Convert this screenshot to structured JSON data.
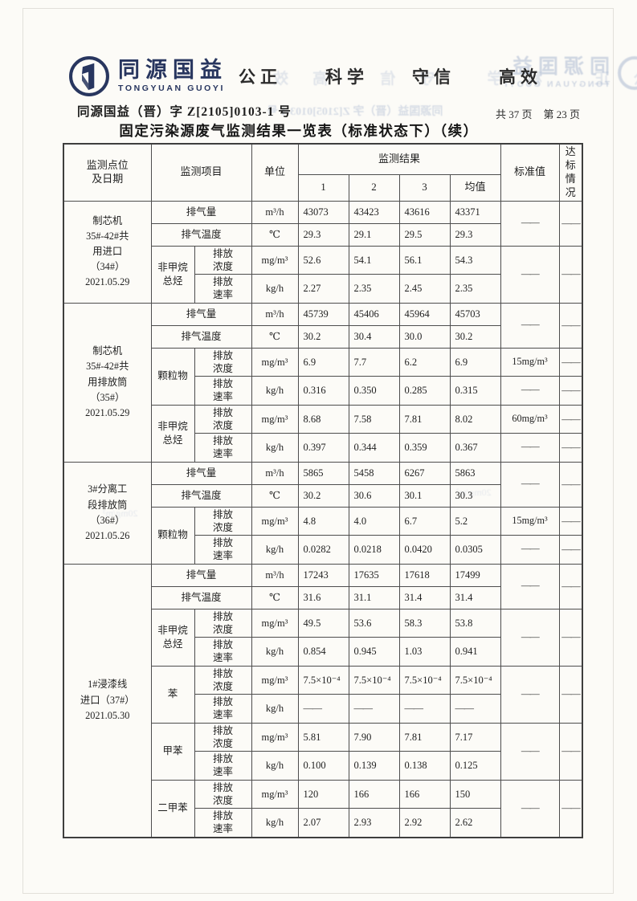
{
  "brand": {
    "logo_text": "同源国益",
    "logo_sub": "TONGYUAN GUOYI",
    "slogans": [
      "公正",
      "科学",
      "守信",
      "高效"
    ]
  },
  "header": {
    "doc_number": "同源国益（晋）字 Z[2105]0103-1 号",
    "page_count": "共 37 页",
    "page_current": "第 23 页",
    "title": "固定污染源废气监测结果一览表（标准状态下）（续）"
  },
  "ghosts": {
    "logo_text": "同源国益",
    "logo_sub": "TONGYUAN GUOYI",
    "doc_number": "同源国益（晋）字 Z[2105]0103-1 号",
    "slogans": "公正 科学 守信 高效",
    "small1": "20mg/m³",
    "small2": "20mg/m³"
  },
  "table": {
    "header_rows": [
      [
        {
          "t": "监测点位\n及日期",
          "rs": 2,
          "k": "h"
        },
        {
          "t": "监测项目",
          "rs": 2,
          "cs": 2,
          "k": "h"
        },
        {
          "t": "单位",
          "rs": 2,
          "k": "h"
        },
        {
          "t": "监测结果",
          "cs": 4,
          "k": "h"
        },
        {
          "t": "标准值",
          "rs": 2,
          "k": "h"
        },
        {
          "t": "达标\n情况",
          "rs": 2,
          "k": "h"
        }
      ],
      [
        {
          "t": "1",
          "k": "h"
        },
        {
          "t": "2",
          "k": "h"
        },
        {
          "t": "3",
          "k": "h"
        },
        {
          "t": "均值",
          "k": "h"
        }
      ]
    ],
    "rows": [
      {
        "h": "s",
        "c": [
          {
            "t": "制芯机\n35#-42#共\n用进口\n（34#）\n2021.05.29",
            "rs": 4,
            "k": "pt"
          },
          {
            "t": "排气量",
            "cs": 2,
            "k": "it"
          },
          {
            "t": "m³/h",
            "k": "un"
          },
          {
            "t": "43073",
            "k": "v"
          },
          {
            "t": "43423",
            "k": "v"
          },
          {
            "t": "43616",
            "k": "v"
          },
          {
            "t": "43371",
            "k": "v"
          },
          {
            "t": "——",
            "rs": 2,
            "k": "std"
          },
          {
            "t": "——",
            "rs": 2,
            "k": "cp"
          }
        ]
      },
      {
        "h": "s",
        "c": [
          {
            "t": "排气温度",
            "cs": 2,
            "k": "it"
          },
          {
            "t": "℃",
            "k": "un"
          },
          {
            "t": "29.3",
            "k": "v"
          },
          {
            "t": "29.1",
            "k": "v"
          },
          {
            "t": "29.5",
            "k": "v"
          },
          {
            "t": "29.3",
            "k": "v"
          }
        ]
      },
      {
        "h": "d",
        "c": [
          {
            "t": "非甲烷\n总烃",
            "rs": 2,
            "k": "it"
          },
          {
            "t": "排放\n浓度",
            "k": "sub"
          },
          {
            "t": "mg/m³",
            "k": "un"
          },
          {
            "t": "52.6",
            "k": "v"
          },
          {
            "t": "54.1",
            "k": "v"
          },
          {
            "t": "56.1",
            "k": "v"
          },
          {
            "t": "54.3",
            "k": "v"
          },
          {
            "t": "——",
            "rs": 2,
            "k": "std"
          },
          {
            "t": "——",
            "rs": 2,
            "k": "cp"
          }
        ]
      },
      {
        "h": "d",
        "c": [
          {
            "t": "排放\n速率",
            "k": "sub"
          },
          {
            "t": "kg/h",
            "k": "un"
          },
          {
            "t": "2.27",
            "k": "v"
          },
          {
            "t": "2.35",
            "k": "v"
          },
          {
            "t": "2.45",
            "k": "v"
          },
          {
            "t": "2.35",
            "k": "v"
          }
        ]
      },
      {
        "h": "s",
        "c": [
          {
            "t": "制芯机\n35#-42#共\n用排放筒\n（35#）\n2021.05.29",
            "rs": 6,
            "k": "pt"
          },
          {
            "t": "排气量",
            "cs": 2,
            "k": "it"
          },
          {
            "t": "m³/h",
            "k": "un"
          },
          {
            "t": "45739",
            "k": "v"
          },
          {
            "t": "45406",
            "k": "v"
          },
          {
            "t": "45964",
            "k": "v"
          },
          {
            "t": "45703",
            "k": "v"
          },
          {
            "t": "——",
            "rs": 2,
            "k": "std"
          },
          {
            "t": "——",
            "rs": 2,
            "k": "cp"
          }
        ]
      },
      {
        "h": "s",
        "c": [
          {
            "t": "排气温度",
            "cs": 2,
            "k": "it"
          },
          {
            "t": "℃",
            "k": "un"
          },
          {
            "t": "30.2",
            "k": "v"
          },
          {
            "t": "30.4",
            "k": "v"
          },
          {
            "t": "30.0",
            "k": "v"
          },
          {
            "t": "30.2",
            "k": "v"
          }
        ]
      },
      {
        "h": "d",
        "c": [
          {
            "t": "颗粒物",
            "rs": 2,
            "k": "it"
          },
          {
            "t": "排放\n浓度",
            "k": "sub"
          },
          {
            "t": "mg/m³",
            "k": "un"
          },
          {
            "t": "6.9",
            "k": "v"
          },
          {
            "t": "7.7",
            "k": "v"
          },
          {
            "t": "6.2",
            "k": "v"
          },
          {
            "t": "6.9",
            "k": "v"
          },
          {
            "t": "15mg/m³",
            "k": "std"
          },
          {
            "t": "——",
            "k": "cp"
          }
        ]
      },
      {
        "h": "d",
        "c": [
          {
            "t": "排放\n速率",
            "k": "sub"
          },
          {
            "t": "kg/h",
            "k": "un"
          },
          {
            "t": "0.316",
            "k": "v"
          },
          {
            "t": "0.350",
            "k": "v"
          },
          {
            "t": "0.285",
            "k": "v"
          },
          {
            "t": "0.315",
            "k": "v"
          },
          {
            "t": "——",
            "k": "std"
          },
          {
            "t": "——",
            "k": "cp"
          }
        ]
      },
      {
        "h": "d",
        "c": [
          {
            "t": "非甲烷\n总烃",
            "rs": 2,
            "k": "it"
          },
          {
            "t": "排放\n浓度",
            "k": "sub"
          },
          {
            "t": "mg/m³",
            "k": "un"
          },
          {
            "t": "8.68",
            "k": "v"
          },
          {
            "t": "7.58",
            "k": "v"
          },
          {
            "t": "7.81",
            "k": "v"
          },
          {
            "t": "8.02",
            "k": "v"
          },
          {
            "t": "60mg/m³",
            "k": "std"
          },
          {
            "t": "——",
            "k": "cp"
          }
        ]
      },
      {
        "h": "d",
        "c": [
          {
            "t": "排放\n速率",
            "k": "sub"
          },
          {
            "t": "kg/h",
            "k": "un"
          },
          {
            "t": "0.397",
            "k": "v"
          },
          {
            "t": "0.344",
            "k": "v"
          },
          {
            "t": "0.359",
            "k": "v"
          },
          {
            "t": "0.367",
            "k": "v"
          },
          {
            "t": "——",
            "k": "std"
          },
          {
            "t": "——",
            "k": "cp"
          }
        ]
      },
      {
        "h": "s",
        "c": [
          {
            "t": "3#分离工\n段排放筒\n（36#）\n2021.05.26",
            "rs": 4,
            "k": "pt"
          },
          {
            "t": "排气量",
            "cs": 2,
            "k": "it"
          },
          {
            "t": "m³/h",
            "k": "un"
          },
          {
            "t": "5865",
            "k": "v"
          },
          {
            "t": "5458",
            "k": "v"
          },
          {
            "t": "6267",
            "k": "v"
          },
          {
            "t": "5863",
            "k": "v"
          },
          {
            "t": "——",
            "rs": 2,
            "k": "std"
          },
          {
            "t": "——",
            "rs": 2,
            "k": "cp"
          }
        ]
      },
      {
        "h": "s",
        "c": [
          {
            "t": "排气温度",
            "cs": 2,
            "k": "it"
          },
          {
            "t": "℃",
            "k": "un"
          },
          {
            "t": "30.2",
            "k": "v"
          },
          {
            "t": "30.6",
            "k": "v"
          },
          {
            "t": "30.1",
            "k": "v"
          },
          {
            "t": "30.3",
            "k": "v"
          }
        ]
      },
      {
        "h": "d",
        "c": [
          {
            "t": "颗粒物",
            "rs": 2,
            "k": "it"
          },
          {
            "t": "排放\n浓度",
            "k": "sub"
          },
          {
            "t": "mg/m³",
            "k": "un"
          },
          {
            "t": "4.8",
            "k": "v"
          },
          {
            "t": "4.0",
            "k": "v"
          },
          {
            "t": "6.7",
            "k": "v"
          },
          {
            "t": "5.2",
            "k": "v"
          },
          {
            "t": "15mg/m³",
            "k": "std"
          },
          {
            "t": "——",
            "k": "cp"
          }
        ]
      },
      {
        "h": "d",
        "c": [
          {
            "t": "排放\n速率",
            "k": "sub"
          },
          {
            "t": "kg/h",
            "k": "un"
          },
          {
            "t": "0.0282",
            "k": "v"
          },
          {
            "t": "0.0218",
            "k": "v"
          },
          {
            "t": "0.0420",
            "k": "v"
          },
          {
            "t": "0.0305",
            "k": "v"
          },
          {
            "t": "——",
            "k": "std"
          },
          {
            "t": "——",
            "k": "cp"
          }
        ]
      },
      {
        "h": "s",
        "c": [
          {
            "t": "1#浸漆线\n进口（37#）\n2021.05.30",
            "rs": 10,
            "k": "pt"
          },
          {
            "t": "排气量",
            "cs": 2,
            "k": "it"
          },
          {
            "t": "m³/h",
            "k": "un"
          },
          {
            "t": "17243",
            "k": "v"
          },
          {
            "t": "17635",
            "k": "v"
          },
          {
            "t": "17618",
            "k": "v"
          },
          {
            "t": "17499",
            "k": "v"
          },
          {
            "t": "——",
            "rs": 2,
            "k": "std"
          },
          {
            "t": "——",
            "rs": 2,
            "k": "cp"
          }
        ]
      },
      {
        "h": "s",
        "c": [
          {
            "t": "排气温度",
            "cs": 2,
            "k": "it"
          },
          {
            "t": "℃",
            "k": "un"
          },
          {
            "t": "31.6",
            "k": "v"
          },
          {
            "t": "31.1",
            "k": "v"
          },
          {
            "t": "31.4",
            "k": "v"
          },
          {
            "t": "31.4",
            "k": "v"
          }
        ]
      },
      {
        "h": "d",
        "c": [
          {
            "t": "非甲烷\n总烃",
            "rs": 2,
            "k": "it"
          },
          {
            "t": "排放\n浓度",
            "k": "sub"
          },
          {
            "t": "mg/m³",
            "k": "un"
          },
          {
            "t": "49.5",
            "k": "v"
          },
          {
            "t": "53.6",
            "k": "v"
          },
          {
            "t": "58.3",
            "k": "v"
          },
          {
            "t": "53.8",
            "k": "v"
          },
          {
            "t": "——",
            "rs": 2,
            "k": "std"
          },
          {
            "t": "——",
            "rs": 2,
            "k": "cp"
          }
        ]
      },
      {
        "h": "d",
        "c": [
          {
            "t": "排放\n速率",
            "k": "sub"
          },
          {
            "t": "kg/h",
            "k": "un"
          },
          {
            "t": "0.854",
            "k": "v"
          },
          {
            "t": "0.945",
            "k": "v"
          },
          {
            "t": "1.03",
            "k": "v"
          },
          {
            "t": "0.941",
            "k": "v"
          }
        ]
      },
      {
        "h": "d",
        "c": [
          {
            "t": "苯",
            "rs": 2,
            "k": "it"
          },
          {
            "t": "排放\n浓度",
            "k": "sub"
          },
          {
            "t": "mg/m³",
            "k": "un"
          },
          {
            "t": "7.5×10⁻⁴",
            "k": "v"
          },
          {
            "t": "7.5×10⁻⁴",
            "k": "v"
          },
          {
            "t": "7.5×10⁻⁴",
            "k": "v"
          },
          {
            "t": "7.5×10⁻⁴",
            "k": "v"
          },
          {
            "t": "——",
            "rs": 2,
            "k": "std"
          },
          {
            "t": "——",
            "rs": 2,
            "k": "cp"
          }
        ]
      },
      {
        "h": "d",
        "c": [
          {
            "t": "排放\n速率",
            "k": "sub"
          },
          {
            "t": "kg/h",
            "k": "un"
          },
          {
            "t": "——",
            "k": "v"
          },
          {
            "t": "——",
            "k": "v"
          },
          {
            "t": "——",
            "k": "v"
          },
          {
            "t": "——",
            "k": "v"
          }
        ]
      },
      {
        "h": "d",
        "c": [
          {
            "t": "甲苯",
            "rs": 2,
            "k": "it"
          },
          {
            "t": "排放\n浓度",
            "k": "sub"
          },
          {
            "t": "mg/m³",
            "k": "un"
          },
          {
            "t": "5.81",
            "k": "v"
          },
          {
            "t": "7.90",
            "k": "v"
          },
          {
            "t": "7.81",
            "k": "v"
          },
          {
            "t": "7.17",
            "k": "v"
          },
          {
            "t": "——",
            "rs": 2,
            "k": "std"
          },
          {
            "t": "——",
            "rs": 2,
            "k": "cp"
          }
        ]
      },
      {
        "h": "d",
        "c": [
          {
            "t": "排放\n速率",
            "k": "sub"
          },
          {
            "t": "kg/h",
            "k": "un"
          },
          {
            "t": "0.100",
            "k": "v"
          },
          {
            "t": "0.139",
            "k": "v"
          },
          {
            "t": "0.138",
            "k": "v"
          },
          {
            "t": "0.125",
            "k": "v"
          }
        ]
      },
      {
        "h": "d",
        "c": [
          {
            "t": "二甲苯",
            "rs": 2,
            "k": "it"
          },
          {
            "t": "排放\n浓度",
            "k": "sub"
          },
          {
            "t": "mg/m³",
            "k": "un"
          },
          {
            "t": "120",
            "k": "v"
          },
          {
            "t": "166",
            "k": "v"
          },
          {
            "t": "166",
            "k": "v"
          },
          {
            "t": "150",
            "k": "v"
          },
          {
            "t": "——",
            "rs": 2,
            "k": "std"
          },
          {
            "t": "——",
            "rs": 2,
            "k": "cp"
          }
        ]
      },
      {
        "h": "d",
        "c": [
          {
            "t": "排放\n速率",
            "k": "sub"
          },
          {
            "t": "kg/h",
            "k": "un"
          },
          {
            "t": "2.07",
            "k": "v"
          },
          {
            "t": "2.93",
            "k": "v"
          },
          {
            "t": "2.92",
            "k": "v"
          },
          {
            "t": "2.62",
            "k": "v"
          }
        ]
      }
    ]
  }
}
